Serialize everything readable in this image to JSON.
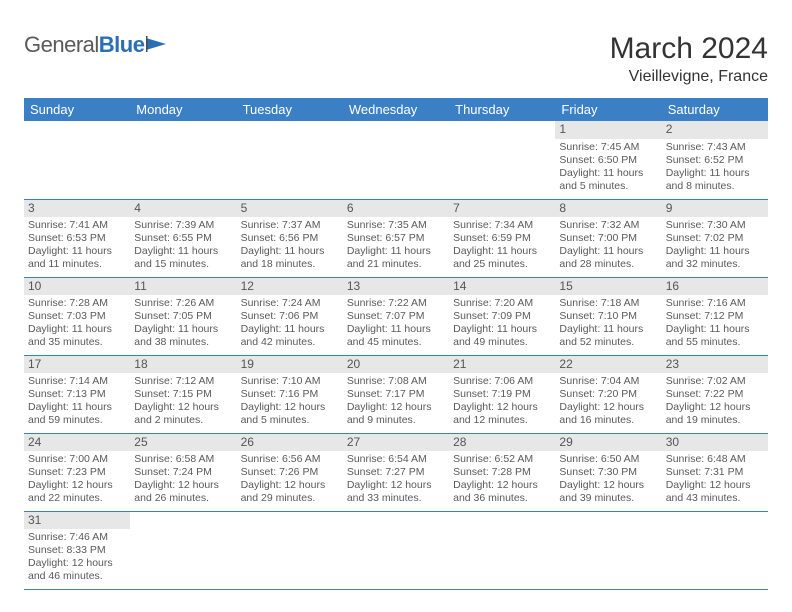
{
  "logo": {
    "part1": "General",
    "part2": "Blue"
  },
  "title": "March 2024",
  "location": "Vieillevigne, France",
  "colors": {
    "header_bg": "#3b7fc4",
    "header_text": "#ffffff",
    "daynum_bg": "#e7e7e7",
    "row_divider": "#3b7fc4",
    "cell_border": "#c9c9c9",
    "text": "#5a5a5a"
  },
  "weekdays": [
    "Sunday",
    "Monday",
    "Tuesday",
    "Wednesday",
    "Thursday",
    "Friday",
    "Saturday"
  ],
  "weeks": [
    [
      {
        "n": "",
        "sr": "",
        "ss": "",
        "dl": ""
      },
      {
        "n": "",
        "sr": "",
        "ss": "",
        "dl": ""
      },
      {
        "n": "",
        "sr": "",
        "ss": "",
        "dl": ""
      },
      {
        "n": "",
        "sr": "",
        "ss": "",
        "dl": ""
      },
      {
        "n": "",
        "sr": "",
        "ss": "",
        "dl": ""
      },
      {
        "n": "1",
        "sr": "Sunrise: 7:45 AM",
        "ss": "Sunset: 6:50 PM",
        "dl": "Daylight: 11 hours and 5 minutes."
      },
      {
        "n": "2",
        "sr": "Sunrise: 7:43 AM",
        "ss": "Sunset: 6:52 PM",
        "dl": "Daylight: 11 hours and 8 minutes."
      }
    ],
    [
      {
        "n": "3",
        "sr": "Sunrise: 7:41 AM",
        "ss": "Sunset: 6:53 PM",
        "dl": "Daylight: 11 hours and 11 minutes."
      },
      {
        "n": "4",
        "sr": "Sunrise: 7:39 AM",
        "ss": "Sunset: 6:55 PM",
        "dl": "Daylight: 11 hours and 15 minutes."
      },
      {
        "n": "5",
        "sr": "Sunrise: 7:37 AM",
        "ss": "Sunset: 6:56 PM",
        "dl": "Daylight: 11 hours and 18 minutes."
      },
      {
        "n": "6",
        "sr": "Sunrise: 7:35 AM",
        "ss": "Sunset: 6:57 PM",
        "dl": "Daylight: 11 hours and 21 minutes."
      },
      {
        "n": "7",
        "sr": "Sunrise: 7:34 AM",
        "ss": "Sunset: 6:59 PM",
        "dl": "Daylight: 11 hours and 25 minutes."
      },
      {
        "n": "8",
        "sr": "Sunrise: 7:32 AM",
        "ss": "Sunset: 7:00 PM",
        "dl": "Daylight: 11 hours and 28 minutes."
      },
      {
        "n": "9",
        "sr": "Sunrise: 7:30 AM",
        "ss": "Sunset: 7:02 PM",
        "dl": "Daylight: 11 hours and 32 minutes."
      }
    ],
    [
      {
        "n": "10",
        "sr": "Sunrise: 7:28 AM",
        "ss": "Sunset: 7:03 PM",
        "dl": "Daylight: 11 hours and 35 minutes."
      },
      {
        "n": "11",
        "sr": "Sunrise: 7:26 AM",
        "ss": "Sunset: 7:05 PM",
        "dl": "Daylight: 11 hours and 38 minutes."
      },
      {
        "n": "12",
        "sr": "Sunrise: 7:24 AM",
        "ss": "Sunset: 7:06 PM",
        "dl": "Daylight: 11 hours and 42 minutes."
      },
      {
        "n": "13",
        "sr": "Sunrise: 7:22 AM",
        "ss": "Sunset: 7:07 PM",
        "dl": "Daylight: 11 hours and 45 minutes."
      },
      {
        "n": "14",
        "sr": "Sunrise: 7:20 AM",
        "ss": "Sunset: 7:09 PM",
        "dl": "Daylight: 11 hours and 49 minutes."
      },
      {
        "n": "15",
        "sr": "Sunrise: 7:18 AM",
        "ss": "Sunset: 7:10 PM",
        "dl": "Daylight: 11 hours and 52 minutes."
      },
      {
        "n": "16",
        "sr": "Sunrise: 7:16 AM",
        "ss": "Sunset: 7:12 PM",
        "dl": "Daylight: 11 hours and 55 minutes."
      }
    ],
    [
      {
        "n": "17",
        "sr": "Sunrise: 7:14 AM",
        "ss": "Sunset: 7:13 PM",
        "dl": "Daylight: 11 hours and 59 minutes."
      },
      {
        "n": "18",
        "sr": "Sunrise: 7:12 AM",
        "ss": "Sunset: 7:15 PM",
        "dl": "Daylight: 12 hours and 2 minutes."
      },
      {
        "n": "19",
        "sr": "Sunrise: 7:10 AM",
        "ss": "Sunset: 7:16 PM",
        "dl": "Daylight: 12 hours and 5 minutes."
      },
      {
        "n": "20",
        "sr": "Sunrise: 7:08 AM",
        "ss": "Sunset: 7:17 PM",
        "dl": "Daylight: 12 hours and 9 minutes."
      },
      {
        "n": "21",
        "sr": "Sunrise: 7:06 AM",
        "ss": "Sunset: 7:19 PM",
        "dl": "Daylight: 12 hours and 12 minutes."
      },
      {
        "n": "22",
        "sr": "Sunrise: 7:04 AM",
        "ss": "Sunset: 7:20 PM",
        "dl": "Daylight: 12 hours and 16 minutes."
      },
      {
        "n": "23",
        "sr": "Sunrise: 7:02 AM",
        "ss": "Sunset: 7:22 PM",
        "dl": "Daylight: 12 hours and 19 minutes."
      }
    ],
    [
      {
        "n": "24",
        "sr": "Sunrise: 7:00 AM",
        "ss": "Sunset: 7:23 PM",
        "dl": "Daylight: 12 hours and 22 minutes."
      },
      {
        "n": "25",
        "sr": "Sunrise: 6:58 AM",
        "ss": "Sunset: 7:24 PM",
        "dl": "Daylight: 12 hours and 26 minutes."
      },
      {
        "n": "26",
        "sr": "Sunrise: 6:56 AM",
        "ss": "Sunset: 7:26 PM",
        "dl": "Daylight: 12 hours and 29 minutes."
      },
      {
        "n": "27",
        "sr": "Sunrise: 6:54 AM",
        "ss": "Sunset: 7:27 PM",
        "dl": "Daylight: 12 hours and 33 minutes."
      },
      {
        "n": "28",
        "sr": "Sunrise: 6:52 AM",
        "ss": "Sunset: 7:28 PM",
        "dl": "Daylight: 12 hours and 36 minutes."
      },
      {
        "n": "29",
        "sr": "Sunrise: 6:50 AM",
        "ss": "Sunset: 7:30 PM",
        "dl": "Daylight: 12 hours and 39 minutes."
      },
      {
        "n": "30",
        "sr": "Sunrise: 6:48 AM",
        "ss": "Sunset: 7:31 PM",
        "dl": "Daylight: 12 hours and 43 minutes."
      }
    ],
    [
      {
        "n": "31",
        "sr": "Sunrise: 7:46 AM",
        "ss": "Sunset: 8:33 PM",
        "dl": "Daylight: 12 hours and 46 minutes."
      },
      {
        "n": "",
        "sr": "",
        "ss": "",
        "dl": ""
      },
      {
        "n": "",
        "sr": "",
        "ss": "",
        "dl": ""
      },
      {
        "n": "",
        "sr": "",
        "ss": "",
        "dl": ""
      },
      {
        "n": "",
        "sr": "",
        "ss": "",
        "dl": ""
      },
      {
        "n": "",
        "sr": "",
        "ss": "",
        "dl": ""
      },
      {
        "n": "",
        "sr": "",
        "ss": "",
        "dl": ""
      }
    ]
  ]
}
